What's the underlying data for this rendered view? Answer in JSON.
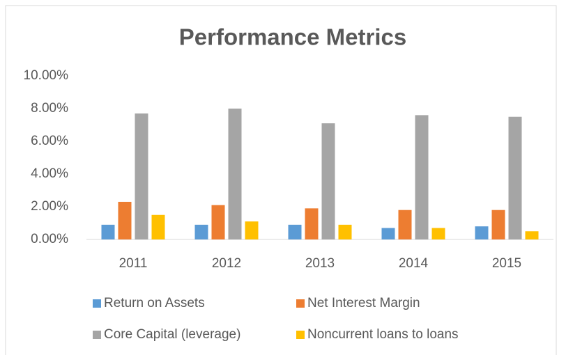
{
  "chart_data": {
    "type": "bar",
    "title": "Performance Metrics",
    "categories": [
      "2011",
      "2012",
      "2013",
      "2014",
      "2015"
    ],
    "series": [
      {
        "name": "Return on Assets",
        "color": "#5b9bd5",
        "values": [
          0.9,
          0.9,
          0.9,
          0.7,
          0.8
        ]
      },
      {
        "name": "Net Interest Margin",
        "color": "#ed7d31",
        "values": [
          2.3,
          2.1,
          1.9,
          1.8,
          1.8
        ]
      },
      {
        "name": "Core Capital (leverage)",
        "color": "#a5a5a5",
        "values": [
          7.7,
          8.0,
          7.1,
          7.6,
          7.5
        ]
      },
      {
        "name": "Noncurrent loans to loans",
        "color": "#ffc000",
        "values": [
          1.5,
          1.1,
          0.9,
          0.7,
          0.5
        ]
      }
    ],
    "ylim": [
      0,
      10
    ],
    "yticks": [
      {
        "value": 0,
        "label": "0.00%"
      },
      {
        "value": 2,
        "label": "2.00%"
      },
      {
        "value": 4,
        "label": "4.00%"
      },
      {
        "value": 6,
        "label": "6.00%"
      },
      {
        "value": 8,
        "label": "8.00%"
      },
      {
        "value": 10,
        "label": "10.00%"
      }
    ],
    "grid": false,
    "legend": "bottom"
  }
}
